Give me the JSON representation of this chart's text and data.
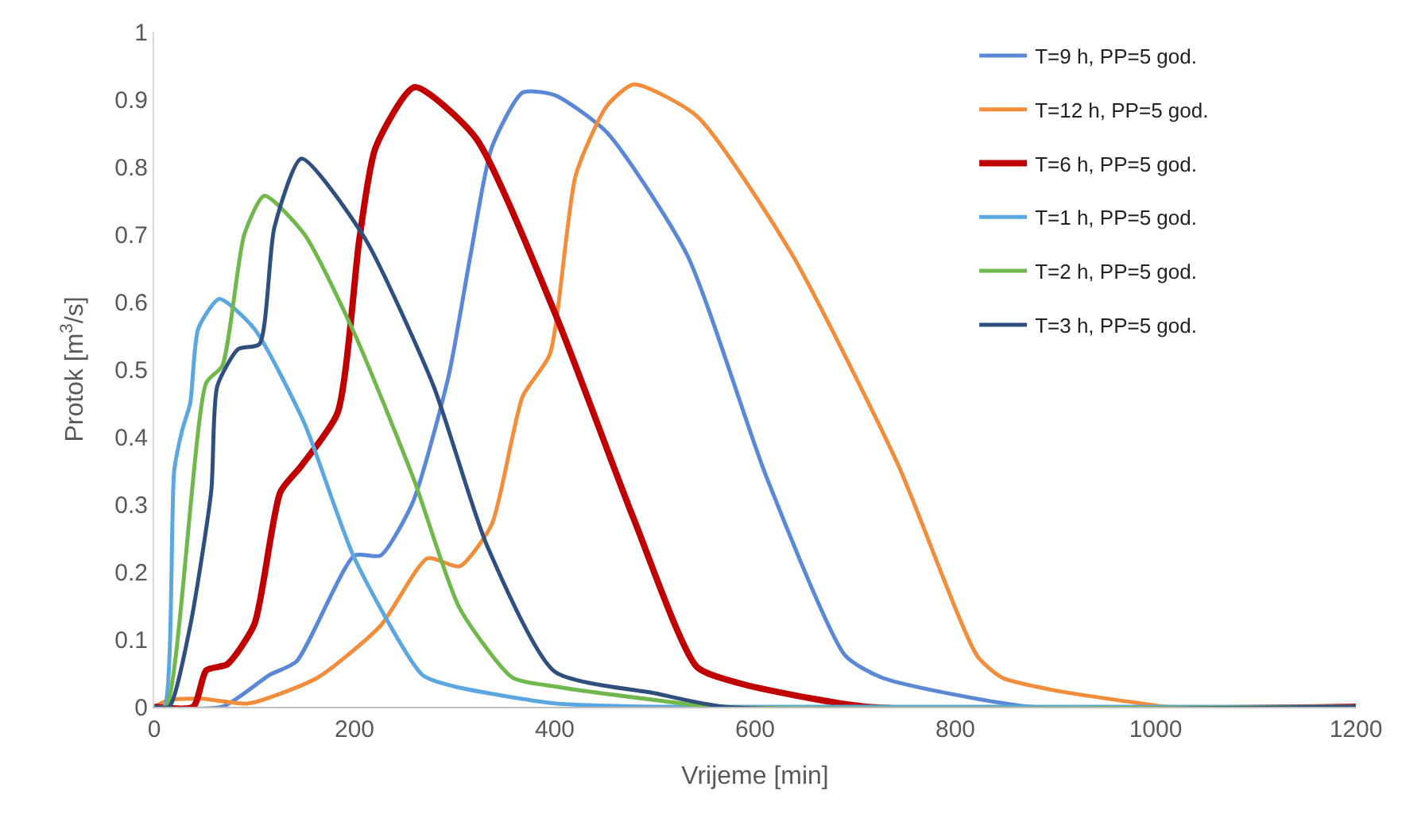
{
  "chart_data": {
    "type": "line",
    "xlabel": "Vrijeme [min]",
    "ylabel": "Protok [m$^{3}$/s]",
    "xlim": [
      0,
      1200
    ],
    "xticks": [
      0,
      200,
      400,
      600,
      800,
      1000,
      1200
    ],
    "ylim": [
      0,
      1
    ],
    "yticks": [
      0,
      0.1,
      0.2,
      0.3,
      0.4,
      0.5,
      0.6,
      0.7,
      0.8,
      0.9,
      1
    ],
    "grid": false,
    "legend": "top right",
    "marker": "none",
    "line_style": "solid",
    "series": [
      {
        "name": "T=9 h, PP=5 god.",
        "color": "#5a88d6",
        "x": [
          0,
          68,
          115,
          142,
          200,
          226,
          258,
          294,
          316,
          337,
          368,
          400,
          452,
          532,
          611,
          690,
          727,
          875,
          1200
        ],
        "values": [
          0,
          0,
          0.047,
          0.067,
          0.224,
          0.224,
          0.302,
          0.49,
          0.67,
          0.828,
          0.91,
          0.906,
          0.851,
          0.67,
          0.342,
          0.076,
          0.043,
          0,
          0
        ]
      },
      {
        "name": "T=12 h, PP=5 god.",
        "color": "#f28e3b",
        "x": [
          0,
          15,
          47,
          94,
          163,
          226,
          273,
          305,
          337,
          368,
          395,
          421,
          452,
          479,
          542,
          637,
          743,
          822,
          847,
          900,
          990,
          1010,
          1200
        ],
        "values": [
          0,
          0.01,
          0.012,
          0.005,
          0.043,
          0.12,
          0.22,
          0.208,
          0.27,
          0.46,
          0.522,
          0.788,
          0.89,
          0.922,
          0.875,
          0.67,
          0.358,
          0.075,
          0.043,
          0.024,
          0.004,
          0,
          0
        ]
      },
      {
        "name": "T=6 h, PP=5 god.",
        "color": "#c00000",
        "x": [
          0,
          39,
          52,
          73,
          100,
          126,
          147,
          183,
          205,
          221,
          260,
          321,
          400,
          479,
          542,
          584,
          711,
          1200
        ],
        "values": [
          0,
          0,
          0.054,
          0.063,
          0.122,
          0.318,
          0.357,
          0.435,
          0.694,
          0.828,
          0.918,
          0.843,
          0.584,
          0.278,
          0.059,
          0.035,
          0,
          0
        ]
      },
      {
        "name": "T=1 h, PP=5 god.",
        "color": "#5ba7e0",
        "x": [
          0,
          10,
          20,
          28,
          36,
          44,
          65,
          100,
          150,
          200,
          268,
          300,
          400,
          500,
          1200
        ],
        "values": [
          0,
          0,
          0.35,
          0.41,
          0.45,
          0.56,
          0.604,
          0.56,
          0.42,
          0.22,
          0.047,
          0.03,
          0.005,
          0,
          0
        ]
      },
      {
        "name": "T=2 h, PP=5 god.",
        "color": "#70b84c",
        "x": [
          0,
          12,
          52,
          68,
          90,
          110,
          150,
          200,
          260,
          305,
          358,
          400,
          500,
          560,
          1200
        ],
        "values": [
          0,
          0,
          0.48,
          0.505,
          0.7,
          0.757,
          0.7,
          0.553,
          0.334,
          0.146,
          0.043,
          0.03,
          0.01,
          0,
          0
        ]
      },
      {
        "name": "T=3 h, PP=5 god.",
        "color": "#2f4f7f",
        "x": [
          0,
          15,
          36,
          57,
          63,
          84,
          105,
          120,
          147,
          210,
          279,
          332,
          400,
          500,
          570,
          1200
        ],
        "values": [
          0,
          0,
          0.12,
          0.32,
          0.475,
          0.53,
          0.537,
          0.71,
          0.812,
          0.695,
          0.475,
          0.24,
          0.052,
          0.02,
          0,
          0
        ]
      }
    ]
  }
}
